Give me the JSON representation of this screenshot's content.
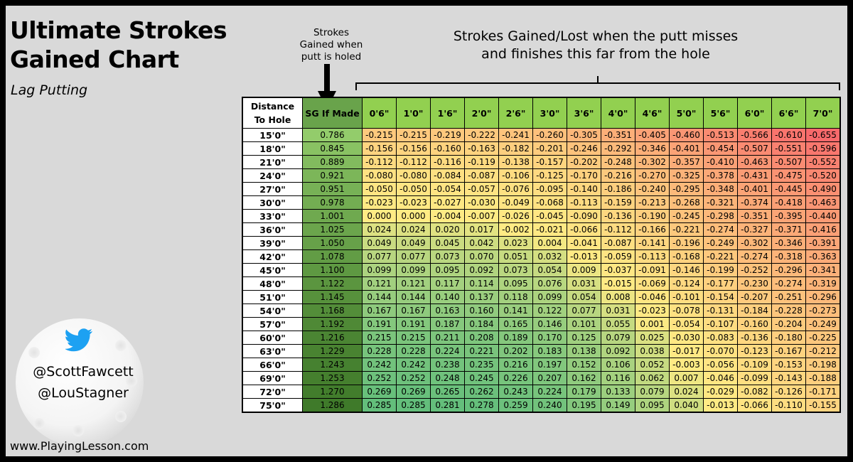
{
  "header": {
    "title_line1": "Ultimate Strokes",
    "title_line2": "Gained Chart",
    "subtitle": "Lag Putting",
    "made_note_l1": "Strokes",
    "made_note_l2": "Gained when",
    "made_note_l3": "putt is holed",
    "miss_note_l1": "Strokes Gained/Lost when the putt misses",
    "miss_note_l2": "and finishes this far from the hole"
  },
  "logo": {
    "icon": "twitter-bird-icon",
    "handle1": "@ScottFawcett",
    "handle2": "@LouStagner"
  },
  "footer": {
    "website": "www.PlayingLesson.com"
  },
  "colors": {
    "background": "#d9d9d9",
    "header_green": "#92d050",
    "positive": "#63be7b",
    "neutral": "#ffeb84",
    "negative": "#f8696b",
    "made_dark": "#3f7a2a",
    "made_light": "#93cc6b"
  },
  "chart_data": {
    "type": "table",
    "title": "Ultimate Strokes Gained Chart",
    "subtitle": "Lag Putting",
    "row_header_line1": "Distance",
    "row_header_line2": "To Hole",
    "made_header": "SG If Made",
    "miss_columns": [
      "0'6\"",
      "1'0\"",
      "1'6\"",
      "2'0\"",
      "2'6\"",
      "3'0\"",
      "3'6\"",
      "4'0\"",
      "4'6\"",
      "5'0\"",
      "5'6\"",
      "6'0\"",
      "6'6\"",
      "7'0\""
    ],
    "rows": [
      {
        "distance": "15'0\"",
        "made": "0.786",
        "miss": [
          "-0.215",
          "-0.215",
          "-0.219",
          "-0.222",
          "-0.241",
          "-0.260",
          "-0.305",
          "-0.351",
          "-0.405",
          "-0.460",
          "-0.513",
          "-0.566",
          "-0.610",
          "-0.655"
        ]
      },
      {
        "distance": "18'0\"",
        "made": "0.845",
        "miss": [
          "-0.156",
          "-0.156",
          "-0.160",
          "-0.163",
          "-0.182",
          "-0.201",
          "-0.246",
          "-0.292",
          "-0.346",
          "-0.401",
          "-0.454",
          "-0.507",
          "-0.551",
          "-0.596"
        ]
      },
      {
        "distance": "21'0\"",
        "made": "0.889",
        "miss": [
          "-0.112",
          "-0.112",
          "-0.116",
          "-0.119",
          "-0.138",
          "-0.157",
          "-0.202",
          "-0.248",
          "-0.302",
          "-0.357",
          "-0.410",
          "-0.463",
          "-0.507",
          "-0.552"
        ]
      },
      {
        "distance": "24'0\"",
        "made": "0.921",
        "miss": [
          "-0.080",
          "-0.080",
          "-0.084",
          "-0.087",
          "-0.106",
          "-0.125",
          "-0.170",
          "-0.216",
          "-0.270",
          "-0.325",
          "-0.378",
          "-0.431",
          "-0.475",
          "-0.520"
        ]
      },
      {
        "distance": "27'0\"",
        "made": "0.951",
        "miss": [
          "-0.050",
          "-0.050",
          "-0.054",
          "-0.057",
          "-0.076",
          "-0.095",
          "-0.140",
          "-0.186",
          "-0.240",
          "-0.295",
          "-0.348",
          "-0.401",
          "-0.445",
          "-0.490"
        ]
      },
      {
        "distance": "30'0\"",
        "made": "0.978",
        "miss": [
          "-0.023",
          "-0.023",
          "-0.027",
          "-0.030",
          "-0.049",
          "-0.068",
          "-0.113",
          "-0.159",
          "-0.213",
          "-0.268",
          "-0.321",
          "-0.374",
          "-0.418",
          "-0.463"
        ]
      },
      {
        "distance": "33'0\"",
        "made": "1.001",
        "miss": [
          "0.000",
          "0.000",
          "-0.004",
          "-0.007",
          "-0.026",
          "-0.045",
          "-0.090",
          "-0.136",
          "-0.190",
          "-0.245",
          "-0.298",
          "-0.351",
          "-0.395",
          "-0.440"
        ]
      },
      {
        "distance": "36'0\"",
        "made": "1.025",
        "miss": [
          "0.024",
          "0.024",
          "0.020",
          "0.017",
          "-0.002",
          "-0.021",
          "-0.066",
          "-0.112",
          "-0.166",
          "-0.221",
          "-0.274",
          "-0.327",
          "-0.371",
          "-0.416"
        ]
      },
      {
        "distance": "39'0\"",
        "made": "1.050",
        "miss": [
          "0.049",
          "0.049",
          "0.045",
          "0.042",
          "0.023",
          "0.004",
          "-0.041",
          "-0.087",
          "-0.141",
          "-0.196",
          "-0.249",
          "-0.302",
          "-0.346",
          "-0.391"
        ]
      },
      {
        "distance": "42'0\"",
        "made": "1.078",
        "miss": [
          "0.077",
          "0.077",
          "0.073",
          "0.070",
          "0.051",
          "0.032",
          "-0.013",
          "-0.059",
          "-0.113",
          "-0.168",
          "-0.221",
          "-0.274",
          "-0.318",
          "-0.363"
        ]
      },
      {
        "distance": "45'0\"",
        "made": "1.100",
        "miss": [
          "0.099",
          "0.099",
          "0.095",
          "0.092",
          "0.073",
          "0.054",
          "0.009",
          "-0.037",
          "-0.091",
          "-0.146",
          "-0.199",
          "-0.252",
          "-0.296",
          "-0.341"
        ]
      },
      {
        "distance": "48'0\"",
        "made": "1.122",
        "miss": [
          "0.121",
          "0.121",
          "0.117",
          "0.114",
          "0.095",
          "0.076",
          "0.031",
          "-0.015",
          "-0.069",
          "-0.124",
          "-0.177",
          "-0.230",
          "-0.274",
          "-0.319"
        ]
      },
      {
        "distance": "51'0\"",
        "made": "1.145",
        "miss": [
          "0.144",
          "0.144",
          "0.140",
          "0.137",
          "0.118",
          "0.099",
          "0.054",
          "0.008",
          "-0.046",
          "-0.101",
          "-0.154",
          "-0.207",
          "-0.251",
          "-0.296"
        ]
      },
      {
        "distance": "54'0\"",
        "made": "1.168",
        "miss": [
          "0.167",
          "0.167",
          "0.163",
          "0.160",
          "0.141",
          "0.122",
          "0.077",
          "0.031",
          "-0.023",
          "-0.078",
          "-0.131",
          "-0.184",
          "-0.228",
          "-0.273"
        ]
      },
      {
        "distance": "57'0\"",
        "made": "1.192",
        "miss": [
          "0.191",
          "0.191",
          "0.187",
          "0.184",
          "0.165",
          "0.146",
          "0.101",
          "0.055",
          "0.001",
          "-0.054",
          "-0.107",
          "-0.160",
          "-0.204",
          "-0.249"
        ]
      },
      {
        "distance": "60'0\"",
        "made": "1.216",
        "miss": [
          "0.215",
          "0.215",
          "0.211",
          "0.208",
          "0.189",
          "0.170",
          "0.125",
          "0.079",
          "0.025",
          "-0.030",
          "-0.083",
          "-0.136",
          "-0.180",
          "-0.225"
        ]
      },
      {
        "distance": "63'0\"",
        "made": "1.229",
        "miss": [
          "0.228",
          "0.228",
          "0.224",
          "0.221",
          "0.202",
          "0.183",
          "0.138",
          "0.092",
          "0.038",
          "-0.017",
          "-0.070",
          "-0.123",
          "-0.167",
          "-0.212"
        ]
      },
      {
        "distance": "66'0\"",
        "made": "1.243",
        "miss": [
          "0.242",
          "0.242",
          "0.238",
          "0.235",
          "0.216",
          "0.197",
          "0.152",
          "0.106",
          "0.052",
          "-0.003",
          "-0.056",
          "-0.109",
          "-0.153",
          "-0.198"
        ]
      },
      {
        "distance": "69'0\"",
        "made": "1.253",
        "miss": [
          "0.252",
          "0.252",
          "0.248",
          "0.245",
          "0.226",
          "0.207",
          "0.162",
          "0.116",
          "0.062",
          "0.007",
          "-0.046",
          "-0.099",
          "-0.143",
          "-0.188"
        ]
      },
      {
        "distance": "72'0\"",
        "made": "1.270",
        "miss": [
          "0.269",
          "0.269",
          "0.265",
          "0.262",
          "0.243",
          "0.224",
          "0.179",
          "0.133",
          "0.079",
          "0.024",
          "-0.029",
          "-0.082",
          "-0.126",
          "-0.171"
        ]
      },
      {
        "distance": "75'0\"",
        "made": "1.286",
        "miss": [
          "0.285",
          "0.285",
          "0.281",
          "0.278",
          "0.259",
          "0.240",
          "0.195",
          "0.149",
          "0.095",
          "0.040",
          "-0.013",
          "-0.066",
          "-0.110",
          "-0.155"
        ]
      }
    ]
  }
}
